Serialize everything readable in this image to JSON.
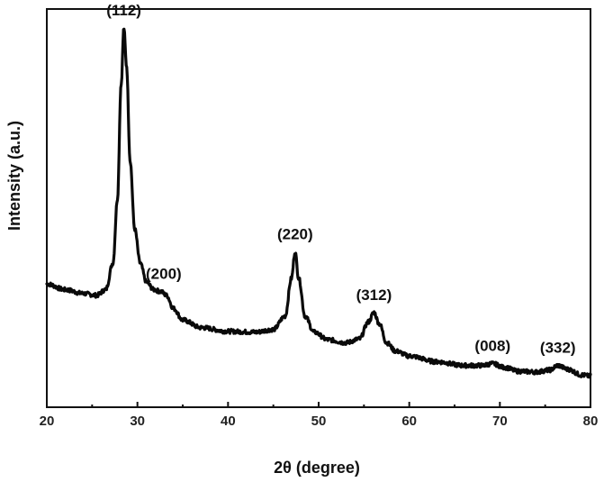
{
  "chart_data": {
    "type": "line",
    "title": "",
    "xlabel": "2θ (degree)",
    "ylabel": "Intensity (a.u.)",
    "xlim": [
      20,
      80
    ],
    "x_ticks": [
      "20",
      "30",
      "40",
      "50",
      "60",
      "70",
      "80"
    ],
    "y_ticks_shown": false,
    "grid": false,
    "series": [
      {
        "x": [
          20,
          22,
          24,
          25.5,
          26.5,
          27.3,
          27.8,
          28.2,
          28.5,
          28.8,
          29.2,
          29.7,
          30.3,
          31,
          31.8,
          32.6,
          33.2,
          34,
          35,
          37,
          40,
          43,
          45,
          46.3,
          47,
          47.4,
          47.8,
          48.5,
          49.5,
          51,
          53,
          54.5,
          55.5,
          56.1,
          56.7,
          57.5,
          58.5,
          60,
          63,
          66,
          68,
          69.2,
          70.5,
          72,
          74,
          75.5,
          76.4,
          77.5,
          79,
          80
        ],
        "y": [
          32.5,
          31,
          30,
          29.5,
          31,
          38,
          55,
          85,
          100,
          90,
          65,
          47,
          38,
          33,
          31,
          30.5,
          29.5,
          26,
          23,
          21,
          20,
          19.8,
          20.5,
          24,
          34,
          41,
          34,
          24,
          19.8,
          17.8,
          17,
          18,
          22.5,
          25,
          22,
          17,
          14.8,
          13.5,
          12,
          11,
          11,
          11.5,
          10.5,
          9.5,
          9.3,
          9.8,
          11,
          10,
          8.5,
          8.2
        ]
      }
    ],
    "annotations": [
      {
        "text": "(112)",
        "x": 28.5,
        "y": 100
      },
      {
        "text": "(200)",
        "x": 32.9,
        "y": 30.5
      },
      {
        "text": "(220)",
        "x": 47.4,
        "y": 41
      },
      {
        "text": "(312)",
        "x": 56.1,
        "y": 25
      },
      {
        "text": "(008)",
        "x": 69.2,
        "y": 11.5
      },
      {
        "text": "(332)",
        "x": 76.4,
        "y": 11
      }
    ]
  }
}
